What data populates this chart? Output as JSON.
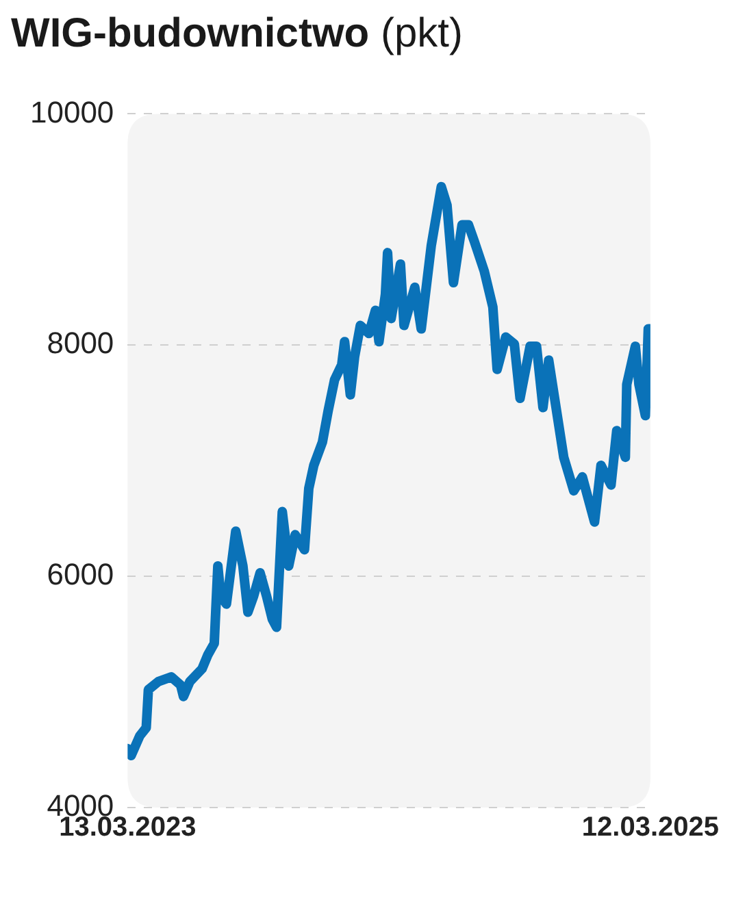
{
  "chart_data": {
    "type": "line",
    "title": "WIG-budownictwo",
    "subtitle": "(pkt)",
    "x": [
      "2023-03-13",
      "2023-03-18",
      "2023-03-30",
      "2023-04-08",
      "2023-04-11",
      "2023-04-25",
      "2023-05-13",
      "2023-05-26",
      "2023-05-30",
      "2023-06-08",
      "2023-06-25",
      "2023-07-03",
      "2023-07-12",
      "2023-07-17",
      "2023-07-21",
      "2023-07-29",
      "2023-08-11",
      "2023-08-21",
      "2023-08-28",
      "2023-09-05",
      "2023-09-14",
      "2023-09-23",
      "2023-10-01",
      "2023-10-07",
      "2023-10-15",
      "2023-10-24",
      "2023-11-02",
      "2023-11-15",
      "2023-11-21",
      "2023-11-28",
      "2023-12-10",
      "2023-12-18",
      "2023-12-27",
      "2024-01-06",
      "2024-01-10",
      "2024-01-18",
      "2024-01-24",
      "2024-02-01",
      "2024-02-13",
      "2024-02-22",
      "2024-02-27",
      "2024-03-07",
      "2024-03-10",
      "2024-03-15",
      "2024-03-28",
      "2024-04-02",
      "2024-04-17",
      "2024-04-26",
      "2024-05-10",
      "2024-05-24",
      "2024-06-01",
      "2024-06-10",
      "2024-06-22",
      "2024-07-01",
      "2024-07-09",
      "2024-07-23",
      "2024-08-04",
      "2024-08-10",
      "2024-08-22",
      "2024-09-03",
      "2024-09-11",
      "2024-09-25",
      "2024-10-04",
      "2024-10-13",
      "2024-10-21",
      "2024-11-02",
      "2024-11-11",
      "2024-11-25",
      "2024-12-07",
      "2024-12-24",
      "2025-01-02",
      "2025-01-16",
      "2025-01-24",
      "2025-02-05",
      "2025-02-07",
      "2025-02-19",
      "2025-02-24",
      "2025-03-05",
      "2025-03-09",
      "2025-03-12"
    ],
    "series": [
      {
        "color": "#0a72b8",
        "values": [
          4510,
          4450,
          4620,
          4690,
          5020,
          5090,
          5130,
          5060,
          4960,
          5090,
          5200,
          5320,
          5420,
          6090,
          5830,
          5760,
          6390,
          6090,
          5690,
          5830,
          6030,
          5830,
          5630,
          5560,
          6560,
          6090,
          6360,
          6230,
          6760,
          6960,
          7160,
          7430,
          7700,
          7830,
          8030,
          7570,
          7900,
          8170,
          8100,
          8300,
          8030,
          8440,
          8800,
          8230,
          8700,
          8170,
          8500,
          8140,
          8860,
          9370,
          9210,
          8540,
          9040,
          9040,
          8900,
          8640,
          8330,
          7790,
          8070,
          8010,
          7540,
          7990,
          7990,
          7460,
          7870,
          7390,
          7030,
          6740,
          6860,
          6470,
          6960,
          6790,
          7260,
          7030,
          7660,
          7990,
          7660,
          7390,
          8140,
          8140
        ]
      }
    ],
    "xlim": [
      "2023-03-13",
      "2025-03-12"
    ],
    "xticks": [
      {
        "value": "2023-03-13",
        "label": "13.03.2023"
      },
      {
        "value": "2025-03-12",
        "label": "12.03.2025"
      }
    ],
    "ylim": [
      4000,
      10000
    ],
    "yticks": [
      4000,
      6000,
      8000,
      10000
    ],
    "grid": "y",
    "line_style": "solid"
  }
}
